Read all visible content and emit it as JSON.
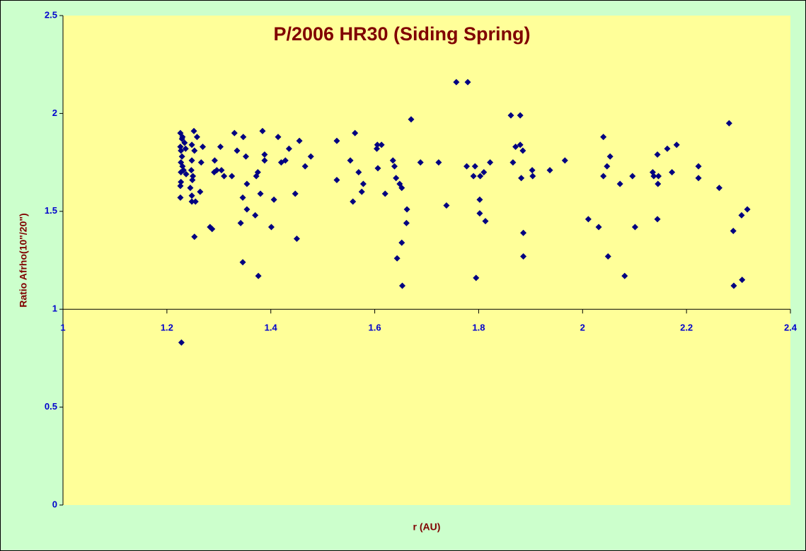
{
  "chart_data": {
    "type": "scatter",
    "title": "P/2006 HR30 (Siding Spring)",
    "x_label": "r (AU)",
    "y_label": "Ratio Afrho(10\"/20\")",
    "xlim": [
      1,
      2.4
    ],
    "xticks": [
      1,
      1.2,
      1.4,
      1.6,
      1.8,
      2,
      2.2,
      2.4
    ],
    "ylim": [
      0,
      2.5
    ],
    "yticks": [
      0,
      0.5,
      1,
      1.5,
      2,
      2.5
    ],
    "x_axis_crosses_at": 1,
    "color": "#000080",
    "x": [
      1.226,
      1.23,
      1.229,
      1.234,
      1.226,
      1.236,
      1.227,
      1.229,
      1.227,
      1.23,
      1.232,
      1.227,
      1.237,
      1.227,
      1.226,
      1.226,
      1.228,
      1.252,
      1.258,
      1.248,
      1.253,
      1.248,
      1.247,
      1.25,
      1.249,
      1.245,
      1.248,
      1.248,
      1.255,
      1.253,
      1.264,
      1.266,
      1.269,
      1.283,
      1.287,
      1.291,
      1.292,
      1.296,
      1.303,
      1.305,
      1.31,
      1.325,
      1.33,
      1.335,
      1.342,
      1.346,
      1.346,
      1.347,
      1.352,
      1.354,
      1.354,
      1.37,
      1.372,
      1.375,
      1.376,
      1.38,
      1.384,
      1.388,
      1.388,
      1.401,
      1.406,
      1.414,
      1.42,
      1.428,
      1.435,
      1.447,
      1.45,
      1.455,
      1.466,
      1.477,
      1.527,
      1.527,
      1.553,
      1.558,
      1.562,
      1.569,
      1.575,
      1.578,
      1.604,
      1.605,
      1.606,
      1.613,
      1.62,
      1.635,
      1.638,
      1.641,
      1.643,
      1.648,
      1.652,
      1.652,
      1.653,
      1.661,
      1.662,
      1.67,
      1.688,
      1.723,
      1.738,
      1.757,
      1.779,
      1.777,
      1.79,
      1.793,
      1.795,
      1.802,
      1.802,
      1.803,
      1.81,
      1.813,
      1.822,
      1.862,
      1.866,
      1.871,
      1.88,
      1.88,
      1.882,
      1.885,
      1.886,
      1.886,
      1.903,
      1.904,
      1.937,
      1.966,
      2.011,
      2.031,
      2.04,
      2.04,
      2.047,
      2.049,
      2.053,
      2.072,
      2.081,
      2.096,
      2.101,
      2.135,
      2.137,
      2.144,
      2.145,
      2.144,
      2.146,
      2.163,
      2.172,
      2.181,
      2.223,
      2.223,
      2.263,
      2.282,
      2.29,
      2.291,
      2.306,
      2.307,
      2.317
    ],
    "values": [
      1.9,
      1.88,
      1.87,
      1.85,
      1.83,
      1.82,
      1.81,
      1.78,
      1.75,
      1.73,
      1.71,
      1.7,
      1.69,
      1.65,
      1.63,
      1.57,
      0.83,
      1.91,
      1.88,
      1.84,
      1.81,
      1.76,
      1.71,
      1.68,
      1.66,
      1.62,
      1.58,
      1.55,
      1.55,
      1.37,
      1.6,
      1.75,
      1.83,
      1.42,
      1.41,
      1.7,
      1.76,
      1.71,
      1.83,
      1.71,
      1.68,
      1.68,
      1.9,
      1.81,
      1.44,
      1.57,
      1.24,
      1.88,
      1.78,
      1.64,
      1.51,
      1.48,
      1.68,
      1.7,
      1.17,
      1.59,
      1.91,
      1.79,
      1.76,
      1.42,
      1.56,
      1.88,
      1.75,
      1.76,
      1.82,
      1.59,
      1.36,
      1.86,
      1.73,
      1.78,
      1.86,
      1.66,
      1.76,
      1.55,
      1.9,
      1.7,
      1.6,
      1.64,
      1.82,
      1.84,
      1.72,
      1.84,
      1.59,
      1.76,
      1.73,
      1.67,
      1.26,
      1.64,
      1.34,
      1.62,
      1.12,
      1.44,
      1.51,
      1.97,
      1.75,
      1.75,
      1.53,
      2.16,
      2.16,
      1.73,
      1.68,
      1.73,
      1.16,
      1.56,
      1.49,
      1.68,
      1.7,
      1.45,
      1.75,
      1.99,
      1.75,
      1.83,
      1.99,
      1.84,
      1.67,
      1.81,
      1.39,
      1.27,
      1.71,
      1.68,
      1.71,
      1.76,
      1.46,
      1.42,
      1.88,
      1.68,
      1.73,
      1.27,
      1.78,
      1.64,
      1.17,
      1.68,
      1.42,
      1.7,
      1.68,
      1.79,
      1.64,
      1.46,
      1.68,
      1.82,
      1.7,
      1.84,
      1.73,
      1.67,
      1.62,
      1.95,
      1.4,
      1.12,
      1.48,
      1.15,
      1.51
    ]
  }
}
